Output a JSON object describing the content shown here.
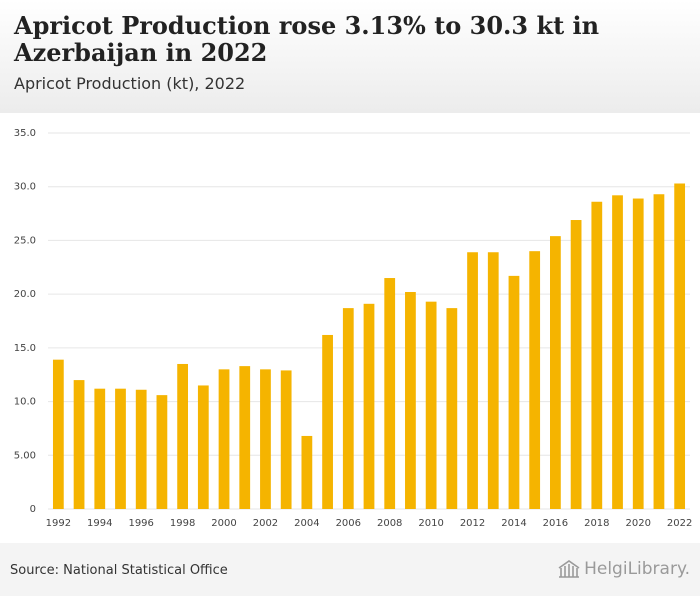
{
  "header": {
    "title": "Apricot Production rose 3.13% to 30.3 kt in Azerbaijan in 2022",
    "subtitle": "Apricot Production (kt), 2022"
  },
  "footer": {
    "source": "Source: National Statistical Office",
    "logo_text": "HelgiLibrary.",
    "logo_icon": "library-building-icon"
  },
  "colors": {
    "bar": "#f5b400",
    "grid": "#e6e6e6",
    "axis_text": "#444444"
  },
  "chart_data": {
    "type": "bar",
    "title": "",
    "xlabel": "",
    "ylabel": "",
    "categories": [
      "1992",
      "1993",
      "1994",
      "1995",
      "1996",
      "1997",
      "1998",
      "1999",
      "2000",
      "2001",
      "2002",
      "2003",
      "2004",
      "2005",
      "2006",
      "2007",
      "2008",
      "2009",
      "2010",
      "2011",
      "2012",
      "2013",
      "2014",
      "2015",
      "2016",
      "2017",
      "2018",
      "2019",
      "2020",
      "2021",
      "2022"
    ],
    "x_tick_labels": [
      "1992",
      "1994",
      "1996",
      "1998",
      "2000",
      "2002",
      "2004",
      "2006",
      "2008",
      "2010",
      "2012",
      "2014",
      "2016",
      "2018",
      "2020",
      "2022"
    ],
    "values": [
      13.9,
      12.0,
      11.2,
      11.2,
      11.1,
      10.6,
      13.5,
      11.5,
      13.0,
      13.3,
      13.0,
      12.9,
      6.8,
      16.2,
      18.7,
      19.1,
      21.5,
      20.2,
      19.3,
      18.7,
      23.9,
      23.9,
      21.7,
      24.0,
      25.4,
      26.9,
      28.6,
      29.2,
      28.9,
      29.3,
      30.3
    ],
    "ylim": [
      0,
      35
    ],
    "y_ticks": [
      "0",
      "5.00",
      "10.0",
      "15.0",
      "20.0",
      "25.0",
      "30.0",
      "35.0"
    ],
    "grid": true,
    "legend": "none"
  }
}
